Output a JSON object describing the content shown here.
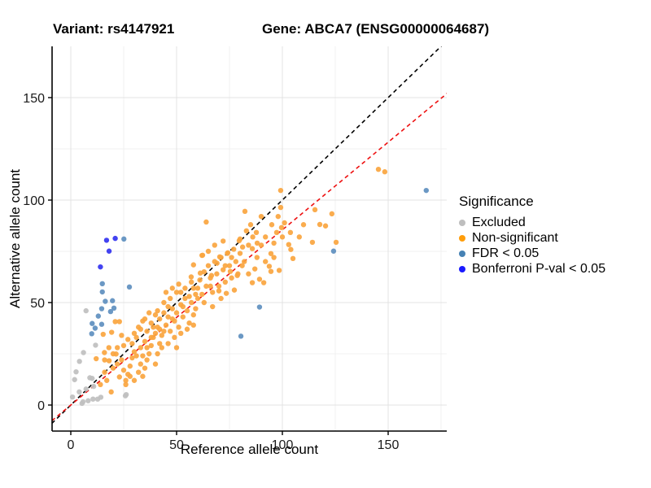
{
  "header": {
    "variant_title": "Variant: rs4147921",
    "gene_title": "Gene: ABCA7 (ENSG00000064687)"
  },
  "chart_data": {
    "type": "scatter",
    "xlabel": "Reference allele count",
    "ylabel": "Alternative allele count",
    "xlim": [
      -9,
      178
    ],
    "ylim": [
      -13,
      175
    ],
    "x_ticks": [
      0,
      50,
      100,
      150
    ],
    "y_ticks": [
      0,
      50,
      100,
      150
    ],
    "grid": {
      "major_step": 50,
      "minor_step": 25,
      "major_color": "#e3e3e3",
      "minor_color": "#f0f0f0"
    },
    "reference_lines": [
      {
        "name": "identity-line",
        "color": "#000000",
        "dash": "5,4",
        "slope": 1,
        "intercept": 0
      },
      {
        "name": "ratio-line",
        "color": "#ee1111",
        "dash": "5,4",
        "slope": 0.855,
        "intercept": 0
      }
    ],
    "legend": {
      "title": "Significance",
      "position": "right",
      "items": [
        {
          "label": "Excluded",
          "color": "#bebebe"
        },
        {
          "label": "Non-significant",
          "color": "#ff9d0a"
        },
        {
          "label": "FDR < 0.05",
          "color": "#4682b4"
        },
        {
          "label": "Bonferroni P-val < 0.05",
          "color": "#1a1aff"
        }
      ]
    },
    "series": [
      {
        "name": "Excluded",
        "color": "#bfbfbf",
        "points": [
          [
            0.8,
            3.9
          ],
          [
            1.8,
            12.4
          ],
          [
            2.5,
            16.2
          ],
          [
            4.1,
            21.3
          ],
          [
            4,
            6.4
          ],
          [
            5.3,
            0.8
          ],
          [
            5.8,
            1.6
          ],
          [
            6,
            25.6
          ],
          [
            7.2,
            46
          ],
          [
            7.2,
            7.8
          ],
          [
            8.2,
            2.1
          ],
          [
            9,
            13.3
          ],
          [
            10.1,
            13
          ],
          [
            10.5,
            2.9
          ],
          [
            10.8,
            9.1
          ],
          [
            11.7,
            29.2
          ],
          [
            12.7,
            2.9
          ],
          [
            14.2,
            3.8
          ],
          [
            25.8,
            4.5
          ],
          [
            26.2,
            5.1
          ]
        ]
      },
      {
        "name": "Non-significant",
        "color": "#faa53f",
        "points": [
          [
            12,
            22.6
          ],
          [
            15.9,
            25.6
          ],
          [
            15.3,
            34.5
          ],
          [
            19.3,
            35.5
          ],
          [
            21,
            40.7
          ],
          [
            23,
            40.7
          ],
          [
            18.1,
            21.6
          ],
          [
            21.4,
            24.9
          ],
          [
            23,
            13.7
          ],
          [
            19.1,
            6.4
          ],
          [
            14,
            10
          ],
          [
            16,
            16
          ],
          [
            17,
            12
          ],
          [
            20,
            18
          ],
          [
            22,
            20
          ],
          [
            24,
            22
          ],
          [
            25,
            17
          ],
          [
            26,
            12
          ],
          [
            27,
            15
          ],
          [
            28,
            19
          ],
          [
            29,
            23
          ],
          [
            30,
            26
          ],
          [
            25,
            29
          ],
          [
            27,
            32
          ],
          [
            26,
            10
          ],
          [
            28,
            14
          ],
          [
            30,
            12
          ],
          [
            32,
            16
          ],
          [
            33,
            20
          ],
          [
            34,
            14
          ],
          [
            35,
            18
          ],
          [
            36,
            22
          ],
          [
            31,
            24
          ],
          [
            33,
            28
          ],
          [
            35,
            31
          ],
          [
            37,
            25
          ],
          [
            38,
            29
          ],
          [
            39,
            33
          ],
          [
            30,
            35
          ],
          [
            32,
            38
          ],
          [
            34,
            41
          ],
          [
            36,
            36
          ],
          [
            38,
            40
          ],
          [
            40,
            44
          ],
          [
            29,
            30
          ],
          [
            31,
            33
          ],
          [
            40,
            20
          ],
          [
            41,
            25
          ],
          [
            42,
            30
          ],
          [
            24,
            34
          ],
          [
            22,
            28
          ],
          [
            20,
            25
          ],
          [
            18,
            28
          ],
          [
            16,
            22
          ],
          [
            34,
            24
          ],
          [
            36,
            28
          ],
          [
            38,
            33
          ],
          [
            33,
            37
          ],
          [
            35,
            42
          ],
          [
            37,
            45
          ],
          [
            39,
            38
          ],
          [
            40,
            35
          ],
          [
            41,
            38
          ],
          [
            42,
            42
          ],
          [
            43,
            34
          ],
          [
            44,
            45
          ],
          [
            45,
            39
          ],
          [
            46,
            43
          ],
          [
            47,
            36
          ],
          [
            48,
            47
          ],
          [
            49,
            41
          ],
          [
            50,
            45
          ],
          [
            51,
            38
          ],
          [
            52,
            49
          ],
          [
            53,
            43
          ],
          [
            54,
            52
          ],
          [
            55,
            46
          ],
          [
            56,
            40
          ],
          [
            57,
            50
          ],
          [
            58,
            44
          ],
          [
            59,
            54
          ],
          [
            43,
            28
          ],
          [
            46,
            30
          ],
          [
            49,
            33
          ],
          [
            52,
            35
          ],
          [
            55,
            37
          ],
          [
            58,
            39
          ],
          [
            44,
            50
          ],
          [
            47,
            52
          ],
          [
            50,
            55
          ],
          [
            53,
            48
          ],
          [
            41,
            46
          ],
          [
            45,
            55
          ],
          [
            48,
            57
          ],
          [
            51,
            59
          ],
          [
            54,
            57
          ],
          [
            57,
            60
          ],
          [
            59,
            47
          ],
          [
            60,
            52
          ],
          [
            42,
            37
          ],
          [
            50,
            28
          ],
          [
            46,
            48
          ],
          [
            48,
            42
          ],
          [
            52,
            55
          ],
          [
            56,
            53
          ],
          [
            44,
            36
          ],
          [
            58,
            57
          ],
          [
            60,
            57
          ],
          [
            61,
            61
          ],
          [
            62,
            54
          ],
          [
            63,
            65
          ],
          [
            64,
            58
          ],
          [
            65,
            68
          ],
          [
            66,
            62
          ],
          [
            67,
            55
          ],
          [
            68,
            70
          ],
          [
            69,
            64
          ],
          [
            70,
            58
          ],
          [
            71,
            72
          ],
          [
            72,
            66
          ],
          [
            73,
            60
          ],
          [
            74,
            74
          ],
          [
            75,
            68
          ],
          [
            76,
            62
          ],
          [
            77,
            76
          ],
          [
            78,
            70
          ],
          [
            79,
            64
          ],
          [
            62,
            73
          ],
          [
            64,
            89.3
          ],
          [
            58,
            68.4
          ],
          [
            61.2,
            64.4
          ],
          [
            66.5,
            63.2
          ],
          [
            70.4,
            72.3
          ],
          [
            69.1,
            69.2
          ],
          [
            74.2,
            74.3
          ],
          [
            75.4,
            65.2
          ],
          [
            78.7,
            63.2
          ],
          [
            56.9,
            62.5
          ],
          [
            62.3,
            73.1
          ],
          [
            70,
            55.7
          ],
          [
            73.5,
            54.5
          ],
          [
            77.3,
            56.1
          ],
          [
            63,
            50
          ],
          [
            67,
            48
          ],
          [
            71,
            52
          ],
          [
            65,
            75
          ],
          [
            68,
            78
          ],
          [
            72,
            80
          ],
          [
            76,
            72
          ],
          [
            66,
            58
          ],
          [
            73,
            68
          ],
          [
            80,
            74
          ],
          [
            82,
            70
          ],
          [
            84,
            78
          ],
          [
            86,
            82
          ],
          [
            88,
            72
          ],
          [
            90,
            78
          ],
          [
            92,
            82
          ],
          [
            95,
            88
          ],
          [
            90,
            92
          ],
          [
            85,
            88
          ],
          [
            83,
            85
          ],
          [
            96,
            79
          ],
          [
            98,
            92
          ],
          [
            100,
            82
          ],
          [
            82.3,
            94.5
          ],
          [
            87.7,
            84.2
          ],
          [
            80,
            81
          ],
          [
            79.6,
            80.2
          ],
          [
            81.2,
            77.1
          ],
          [
            97.3,
            84.2
          ],
          [
            88.1,
            79
          ],
          [
            85.8,
            76.3
          ],
          [
            85.8,
            59.7
          ],
          [
            89.2,
            61.4
          ],
          [
            91.2,
            59.7
          ],
          [
            87,
            66.4
          ],
          [
            93.8,
            67.7
          ],
          [
            98.5,
            65.7
          ],
          [
            99.2,
            104.7
          ],
          [
            99.2,
            96.4
          ],
          [
            115.4,
            95.3
          ],
          [
            123.4,
            93.3
          ],
          [
            117.7,
            88.1
          ],
          [
            120.4,
            87.4
          ],
          [
            101,
            88.9
          ],
          [
            99.6,
            86.6
          ],
          [
            103.8,
            84.2
          ],
          [
            103,
            78.3
          ],
          [
            104,
            75.9
          ],
          [
            114.2,
            79.4
          ],
          [
            125.4,
            79.4
          ],
          [
            105,
            71.5
          ],
          [
            94.6,
            73.9
          ],
          [
            94.6,
            65.2
          ],
          [
            145.4,
            115
          ],
          [
            148.4,
            113.8
          ],
          [
            81,
            68
          ],
          [
            84,
            64
          ],
          [
            92,
            70
          ],
          [
            96,
            72
          ],
          [
            108,
            82
          ],
          [
            110,
            88
          ]
        ]
      },
      {
        "name": "FDR < 0.05",
        "color": "#5e8fbf",
        "points": [
          [
            9.9,
            34.8
          ],
          [
            11.5,
            37.5
          ],
          [
            10.1,
            39.8
          ],
          [
            13,
            43.4
          ],
          [
            14.6,
            39.4
          ],
          [
            14.6,
            47
          ],
          [
            14.9,
            55.2
          ],
          [
            14.9,
            59.2
          ],
          [
            16.3,
            50.6
          ],
          [
            18.8,
            45.6
          ],
          [
            19.7,
            50.9
          ],
          [
            20.4,
            47.3
          ],
          [
            25.1,
            81
          ],
          [
            27.7,
            57.6
          ],
          [
            80.4,
            33.6
          ],
          [
            89.2,
            47.8
          ],
          [
            124.2,
            75.1
          ],
          [
            168,
            104.7
          ]
        ]
      },
      {
        "name": "Bonferroni P-val < 0.05",
        "color": "#3333f0",
        "points": [
          [
            14,
            67.4
          ],
          [
            16.9,
            80.4
          ],
          [
            18.1,
            75.1
          ],
          [
            21,
            81.3
          ]
        ]
      }
    ]
  }
}
